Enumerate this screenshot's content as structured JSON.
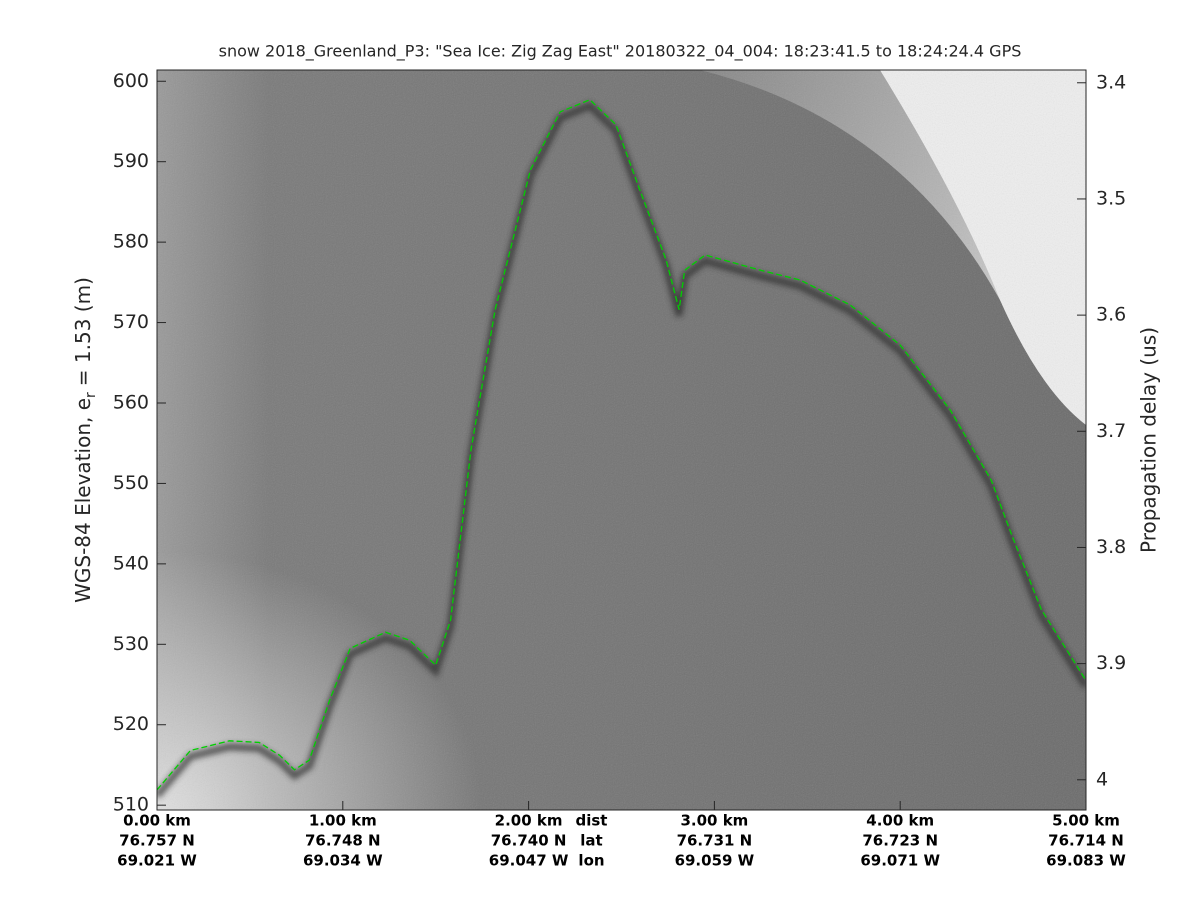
{
  "chart_data": {
    "type": "line",
    "title": "snow 2018_Greenland_P3: \"Sea Ice: Zig Zag East\"  20180322_04_004: 18:23:41.5 to 18:24:24.4 GPS",
    "ylabel": {
      "text": "WGS-84 Elevation, e",
      "sub": "r",
      "tail": "= 1.53 (m)"
    },
    "y2label": "Propagation delay (us)",
    "x": [
      0,
      0.18,
      0.39,
      0.55,
      0.66,
      0.74,
      0.82,
      0.93,
      1.04,
      1.23,
      1.36,
      1.5,
      1.58,
      1.69,
      1.82,
      2.01,
      2.17,
      2.33,
      2.47,
      2.6,
      2.74,
      2.81,
      2.84,
      2.95,
      3.25,
      3.46,
      3.73,
      4.0,
      4.27,
      4.49,
      4.6,
      4.76,
      5.0
    ],
    "series": [
      {
        "color": "#00d000",
        "values": [
          511.9,
          516.8,
          518.0,
          517.8,
          516.2,
          514.4,
          515.6,
          523.1,
          529.5,
          531.5,
          530.5,
          527.4,
          533.0,
          554.2,
          571.6,
          589.0,
          596.2,
          597.7,
          594.6,
          586.4,
          577.8,
          571.6,
          576.5,
          578.4,
          576.5,
          575.3,
          572.2,
          567.2,
          559.1,
          550.4,
          543.6,
          534.3,
          525.5
        ]
      }
    ],
    "xlim": [
      0,
      5
    ],
    "xticks": [
      {
        "value": 0,
        "label": "0.00 km"
      },
      {
        "value": 1,
        "label": "1.00 km"
      },
      {
        "value": 2,
        "label": "2.00 km"
      },
      {
        "value": 3,
        "label": "3.00 km"
      },
      {
        "value": 4,
        "label": "4.00 km"
      },
      {
        "value": 5,
        "label": "5.00 km"
      }
    ],
    "lat_labels": [
      "76.757 N",
      "76.748 N",
      "76.740 N",
      "76.731 N",
      "76.723 N",
      "76.714 N"
    ],
    "lon_labels": [
      "69.021 W",
      "69.034 W",
      "69.047 W",
      "69.059 W",
      "69.071 W",
      "69.083 W"
    ],
    "row_labels": [
      "dist",
      "lat",
      "lon"
    ],
    "ylim": [
      509.4,
      601.4
    ],
    "yticks": [
      510,
      520,
      530,
      540,
      550,
      560,
      570,
      580,
      590,
      600
    ],
    "y2lim": [
      3.389,
      4.026
    ],
    "y2_reversed": true,
    "y2ticks": [
      3.4,
      3.5,
      3.6,
      3.7,
      3.8,
      3.9,
      4
    ],
    "line_style": "dashed"
  }
}
